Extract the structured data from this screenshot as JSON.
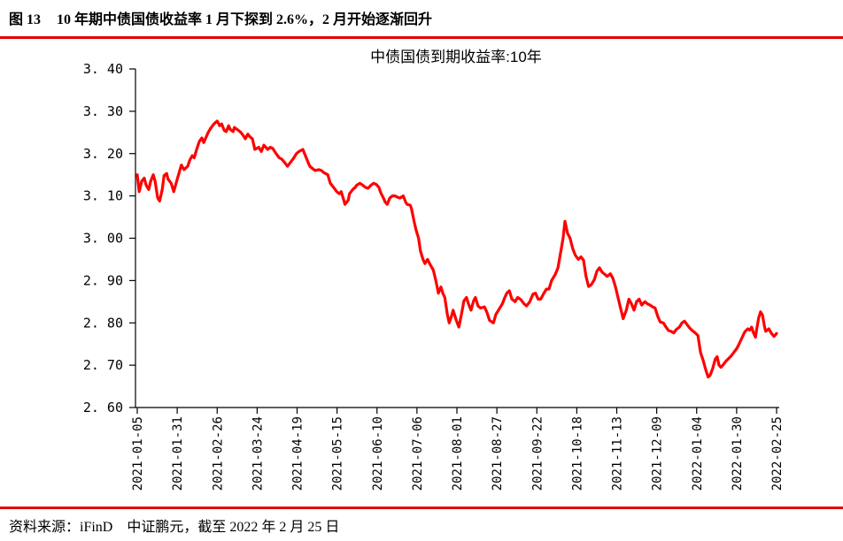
{
  "header": {
    "figure_label": "图 13",
    "title": "10 年期中债国债收益率 1 月下探到 2.6%，2 月开始逐渐回升"
  },
  "footer": {
    "source": "资料来源：iFinD　中证鹏元，截至 2022 年 2 月 25 日"
  },
  "colors": {
    "rule": "#e00000",
    "line": "#ff0000",
    "text": "#000000"
  },
  "chart_data": {
    "type": "line",
    "title": "中债国债到期收益率:10年",
    "xlabel": "",
    "ylabel": "",
    "grid": false,
    "legend_position": "none",
    "ylim": [
      2.6,
      3.4
    ],
    "y_ticks": [
      3.4,
      3.3,
      3.2,
      3.1,
      3.0,
      2.9,
      2.8,
      2.7,
      2.6
    ],
    "y_tick_labels": [
      "3. 40",
      "3. 30",
      "3. 20",
      "3. 10",
      "3. 00",
      "2. 90",
      "2. 80",
      "2. 70",
      "2. 60"
    ],
    "x_tick_labels": [
      "2021-01-05",
      "2021-01-31",
      "2021-02-26",
      "2021-03-24",
      "2021-04-19",
      "2021-05-15",
      "2021-06-10",
      "2021-07-06",
      "2021-08-01",
      "2021-08-27",
      "2021-09-22",
      "2021-10-18",
      "2021-11-13",
      "2021-12-09",
      "2022-01-04",
      "2022-01-30",
      "2022-02-25"
    ],
    "line_color": "#ff0000",
    "points": [
      [
        0.0,
        3.15
      ],
      [
        0.003,
        3.11
      ],
      [
        0.007,
        3.135
      ],
      [
        0.011,
        3.142
      ],
      [
        0.014,
        3.125
      ],
      [
        0.018,
        3.115
      ],
      [
        0.021,
        3.135
      ],
      [
        0.025,
        3.15
      ],
      [
        0.028,
        3.134
      ],
      [
        0.032,
        3.095
      ],
      [
        0.035,
        3.088
      ],
      [
        0.039,
        3.115
      ],
      [
        0.042,
        3.148
      ],
      [
        0.046,
        3.153
      ],
      [
        0.048,
        3.14
      ],
      [
        0.053,
        3.13
      ],
      [
        0.057,
        3.11
      ],
      [
        0.062,
        3.137
      ],
      [
        0.066,
        3.158
      ],
      [
        0.069,
        3.173
      ],
      [
        0.073,
        3.162
      ],
      [
        0.079,
        3.17
      ],
      [
        0.082,
        3.184
      ],
      [
        0.086,
        3.195
      ],
      [
        0.089,
        3.19
      ],
      [
        0.093,
        3.21
      ],
      [
        0.097,
        3.228
      ],
      [
        0.101,
        3.237
      ],
      [
        0.104,
        3.226
      ],
      [
        0.108,
        3.24
      ],
      [
        0.111,
        3.25
      ],
      [
        0.115,
        3.26
      ],
      [
        0.12,
        3.27
      ],
      [
        0.125,
        3.277
      ],
      [
        0.129,
        3.266
      ],
      [
        0.132,
        3.27
      ],
      [
        0.136,
        3.255
      ],
      [
        0.139,
        3.252
      ],
      [
        0.143,
        3.266
      ],
      [
        0.145,
        3.258
      ],
      [
        0.15,
        3.252
      ],
      [
        0.152,
        3.262
      ],
      [
        0.157,
        3.256
      ],
      [
        0.162,
        3.25
      ],
      [
        0.166,
        3.242
      ],
      [
        0.169,
        3.235
      ],
      [
        0.173,
        3.246
      ],
      [
        0.176,
        3.24
      ],
      [
        0.18,
        3.235
      ],
      [
        0.184,
        3.21
      ],
      [
        0.19,
        3.215
      ],
      [
        0.194,
        3.205
      ],
      [
        0.198,
        3.22
      ],
      [
        0.204,
        3.21
      ],
      [
        0.208,
        3.215
      ],
      [
        0.212,
        3.212
      ],
      [
        0.217,
        3.2
      ],
      [
        0.222,
        3.19
      ],
      [
        0.226,
        3.187
      ],
      [
        0.231,
        3.178
      ],
      [
        0.235,
        3.17
      ],
      [
        0.24,
        3.18
      ],
      [
        0.245,
        3.19
      ],
      [
        0.249,
        3.2
      ],
      [
        0.253,
        3.205
      ],
      [
        0.259,
        3.21
      ],
      [
        0.263,
        3.195
      ],
      [
        0.267,
        3.18
      ],
      [
        0.27,
        3.17
      ],
      [
        0.274,
        3.165
      ],
      [
        0.278,
        3.16
      ],
      [
        0.284,
        3.162
      ],
      [
        0.288,
        3.16
      ],
      [
        0.292,
        3.155
      ],
      [
        0.298,
        3.15
      ],
      [
        0.302,
        3.13
      ],
      [
        0.307,
        3.12
      ],
      [
        0.312,
        3.11
      ],
      [
        0.316,
        3.105
      ],
      [
        0.319,
        3.11
      ],
      [
        0.323,
        3.09
      ],
      [
        0.325,
        3.08
      ],
      [
        0.33,
        3.09
      ],
      [
        0.332,
        3.105
      ],
      [
        0.337,
        3.115
      ],
      [
        0.341,
        3.12
      ],
      [
        0.343,
        3.125
      ],
      [
        0.348,
        3.13
      ],
      [
        0.353,
        3.125
      ],
      [
        0.357,
        3.12
      ],
      [
        0.361,
        3.118
      ],
      [
        0.366,
        3.126
      ],
      [
        0.37,
        3.13
      ],
      [
        0.374,
        3.127
      ],
      [
        0.378,
        3.12
      ],
      [
        0.381,
        3.107
      ],
      [
        0.385,
        3.095
      ],
      [
        0.388,
        3.085
      ],
      [
        0.391,
        3.08
      ],
      [
        0.395,
        3.095
      ],
      [
        0.399,
        3.1
      ],
      [
        0.403,
        3.1
      ],
      [
        0.407,
        3.097
      ],
      [
        0.411,
        3.095
      ],
      [
        0.416,
        3.1
      ],
      [
        0.42,
        3.085
      ],
      [
        0.422,
        3.08
      ],
      [
        0.427,
        3.078
      ],
      [
        0.429,
        3.07
      ],
      [
        0.433,
        3.04
      ],
      [
        0.436,
        3.02
      ],
      [
        0.44,
        3.0
      ],
      [
        0.443,
        2.97
      ],
      [
        0.447,
        2.95
      ],
      [
        0.45,
        2.94
      ],
      [
        0.454,
        2.95
      ],
      [
        0.458,
        2.938
      ],
      [
        0.463,
        2.925
      ],
      [
        0.467,
        2.9
      ],
      [
        0.471,
        2.87
      ],
      [
        0.475,
        2.885
      ],
      [
        0.478,
        2.87
      ],
      [
        0.481,
        2.86
      ],
      [
        0.485,
        2.82
      ],
      [
        0.488,
        2.8
      ],
      [
        0.492,
        2.818
      ],
      [
        0.494,
        2.83
      ],
      [
        0.499,
        2.806
      ],
      [
        0.503,
        2.79
      ],
      [
        0.507,
        2.82
      ],
      [
        0.511,
        2.852
      ],
      [
        0.515,
        2.86
      ],
      [
        0.518,
        2.845
      ],
      [
        0.522,
        2.83
      ],
      [
        0.526,
        2.852
      ],
      [
        0.529,
        2.86
      ],
      [
        0.533,
        2.84
      ],
      [
        0.537,
        2.835
      ],
      [
        0.543,
        2.838
      ],
      [
        0.547,
        2.825
      ],
      [
        0.551,
        2.806
      ],
      [
        0.557,
        2.8
      ],
      [
        0.561,
        2.82
      ],
      [
        0.565,
        2.83
      ],
      [
        0.571,
        2.845
      ],
      [
        0.575,
        2.86
      ],
      [
        0.578,
        2.87
      ],
      [
        0.582,
        2.876
      ],
      [
        0.586,
        2.856
      ],
      [
        0.591,
        2.85
      ],
      [
        0.595,
        2.86
      ],
      [
        0.6,
        2.855
      ],
      [
        0.605,
        2.845
      ],
      [
        0.609,
        2.84
      ],
      [
        0.614,
        2.85
      ],
      [
        0.619,
        2.868
      ],
      [
        0.623,
        2.87
      ],
      [
        0.627,
        2.856
      ],
      [
        0.631,
        2.856
      ],
      [
        0.636,
        2.87
      ],
      [
        0.64,
        2.88
      ],
      [
        0.644,
        2.88
      ],
      [
        0.648,
        2.9
      ],
      [
        0.654,
        2.915
      ],
      [
        0.658,
        2.93
      ],
      [
        0.662,
        2.965
      ],
      [
        0.666,
        3.0
      ],
      [
        0.669,
        3.04
      ],
      [
        0.673,
        3.012
      ],
      [
        0.677,
        3.0
      ],
      [
        0.681,
        2.976
      ],
      [
        0.685,
        2.96
      ],
      [
        0.69,
        2.95
      ],
      [
        0.694,
        2.956
      ],
      [
        0.698,
        2.948
      ],
      [
        0.702,
        2.91
      ],
      [
        0.706,
        2.886
      ],
      [
        0.71,
        2.89
      ],
      [
        0.715,
        2.902
      ],
      [
        0.719,
        2.922
      ],
      [
        0.723,
        2.93
      ],
      [
        0.727,
        2.92
      ],
      [
        0.731,
        2.915
      ],
      [
        0.735,
        2.91
      ],
      [
        0.74,
        2.916
      ],
      [
        0.744,
        2.905
      ],
      [
        0.748,
        2.885
      ],
      [
        0.752,
        2.86
      ],
      [
        0.756,
        2.835
      ],
      [
        0.76,
        2.81
      ],
      [
        0.765,
        2.83
      ],
      [
        0.769,
        2.856
      ],
      [
        0.773,
        2.845
      ],
      [
        0.777,
        2.83
      ],
      [
        0.781,
        2.85
      ],
      [
        0.785,
        2.856
      ],
      [
        0.789,
        2.842
      ],
      [
        0.794,
        2.85
      ],
      [
        0.798,
        2.845
      ],
      [
        0.802,
        2.842
      ],
      [
        0.806,
        2.838
      ],
      [
        0.81,
        2.835
      ],
      [
        0.814,
        2.816
      ],
      [
        0.818,
        2.802
      ],
      [
        0.823,
        2.8
      ],
      [
        0.827,
        2.79
      ],
      [
        0.831,
        2.782
      ],
      [
        0.835,
        2.78
      ],
      [
        0.839,
        2.776
      ],
      [
        0.843,
        2.784
      ],
      [
        0.848,
        2.79
      ],
      [
        0.852,
        2.8
      ],
      [
        0.856,
        2.804
      ],
      [
        0.86,
        2.796
      ],
      [
        0.864,
        2.788
      ],
      [
        0.868,
        2.782
      ],
      [
        0.873,
        2.776
      ],
      [
        0.877,
        2.77
      ],
      [
        0.881,
        2.73
      ],
      [
        0.885,
        2.712
      ],
      [
        0.889,
        2.69
      ],
      [
        0.893,
        2.672
      ],
      [
        0.896,
        2.676
      ],
      [
        0.9,
        2.692
      ],
      [
        0.904,
        2.714
      ],
      [
        0.907,
        2.72
      ],
      [
        0.91,
        2.7
      ],
      [
        0.913,
        2.695
      ],
      [
        0.917,
        2.702
      ],
      [
        0.921,
        2.71
      ],
      [
        0.925,
        2.716
      ],
      [
        0.929,
        2.722
      ],
      [
        0.933,
        2.73
      ],
      [
        0.938,
        2.74
      ],
      [
        0.942,
        2.752
      ],
      [
        0.946,
        2.765
      ],
      [
        0.949,
        2.775
      ],
      [
        0.951,
        2.78
      ],
      [
        0.955,
        2.786
      ],
      [
        0.958,
        2.783
      ],
      [
        0.961,
        2.79
      ],
      [
        0.964,
        2.776
      ],
      [
        0.967,
        2.766
      ],
      [
        0.969,
        2.786
      ],
      [
        0.972,
        2.812
      ],
      [
        0.975,
        2.826
      ],
      [
        0.978,
        2.818
      ],
      [
        0.981,
        2.792
      ],
      [
        0.983,
        2.78
      ],
      [
        0.988,
        2.786
      ],
      [
        0.992,
        2.775
      ],
      [
        0.996,
        2.768
      ],
      [
        1.0,
        2.775
      ]
    ]
  }
}
